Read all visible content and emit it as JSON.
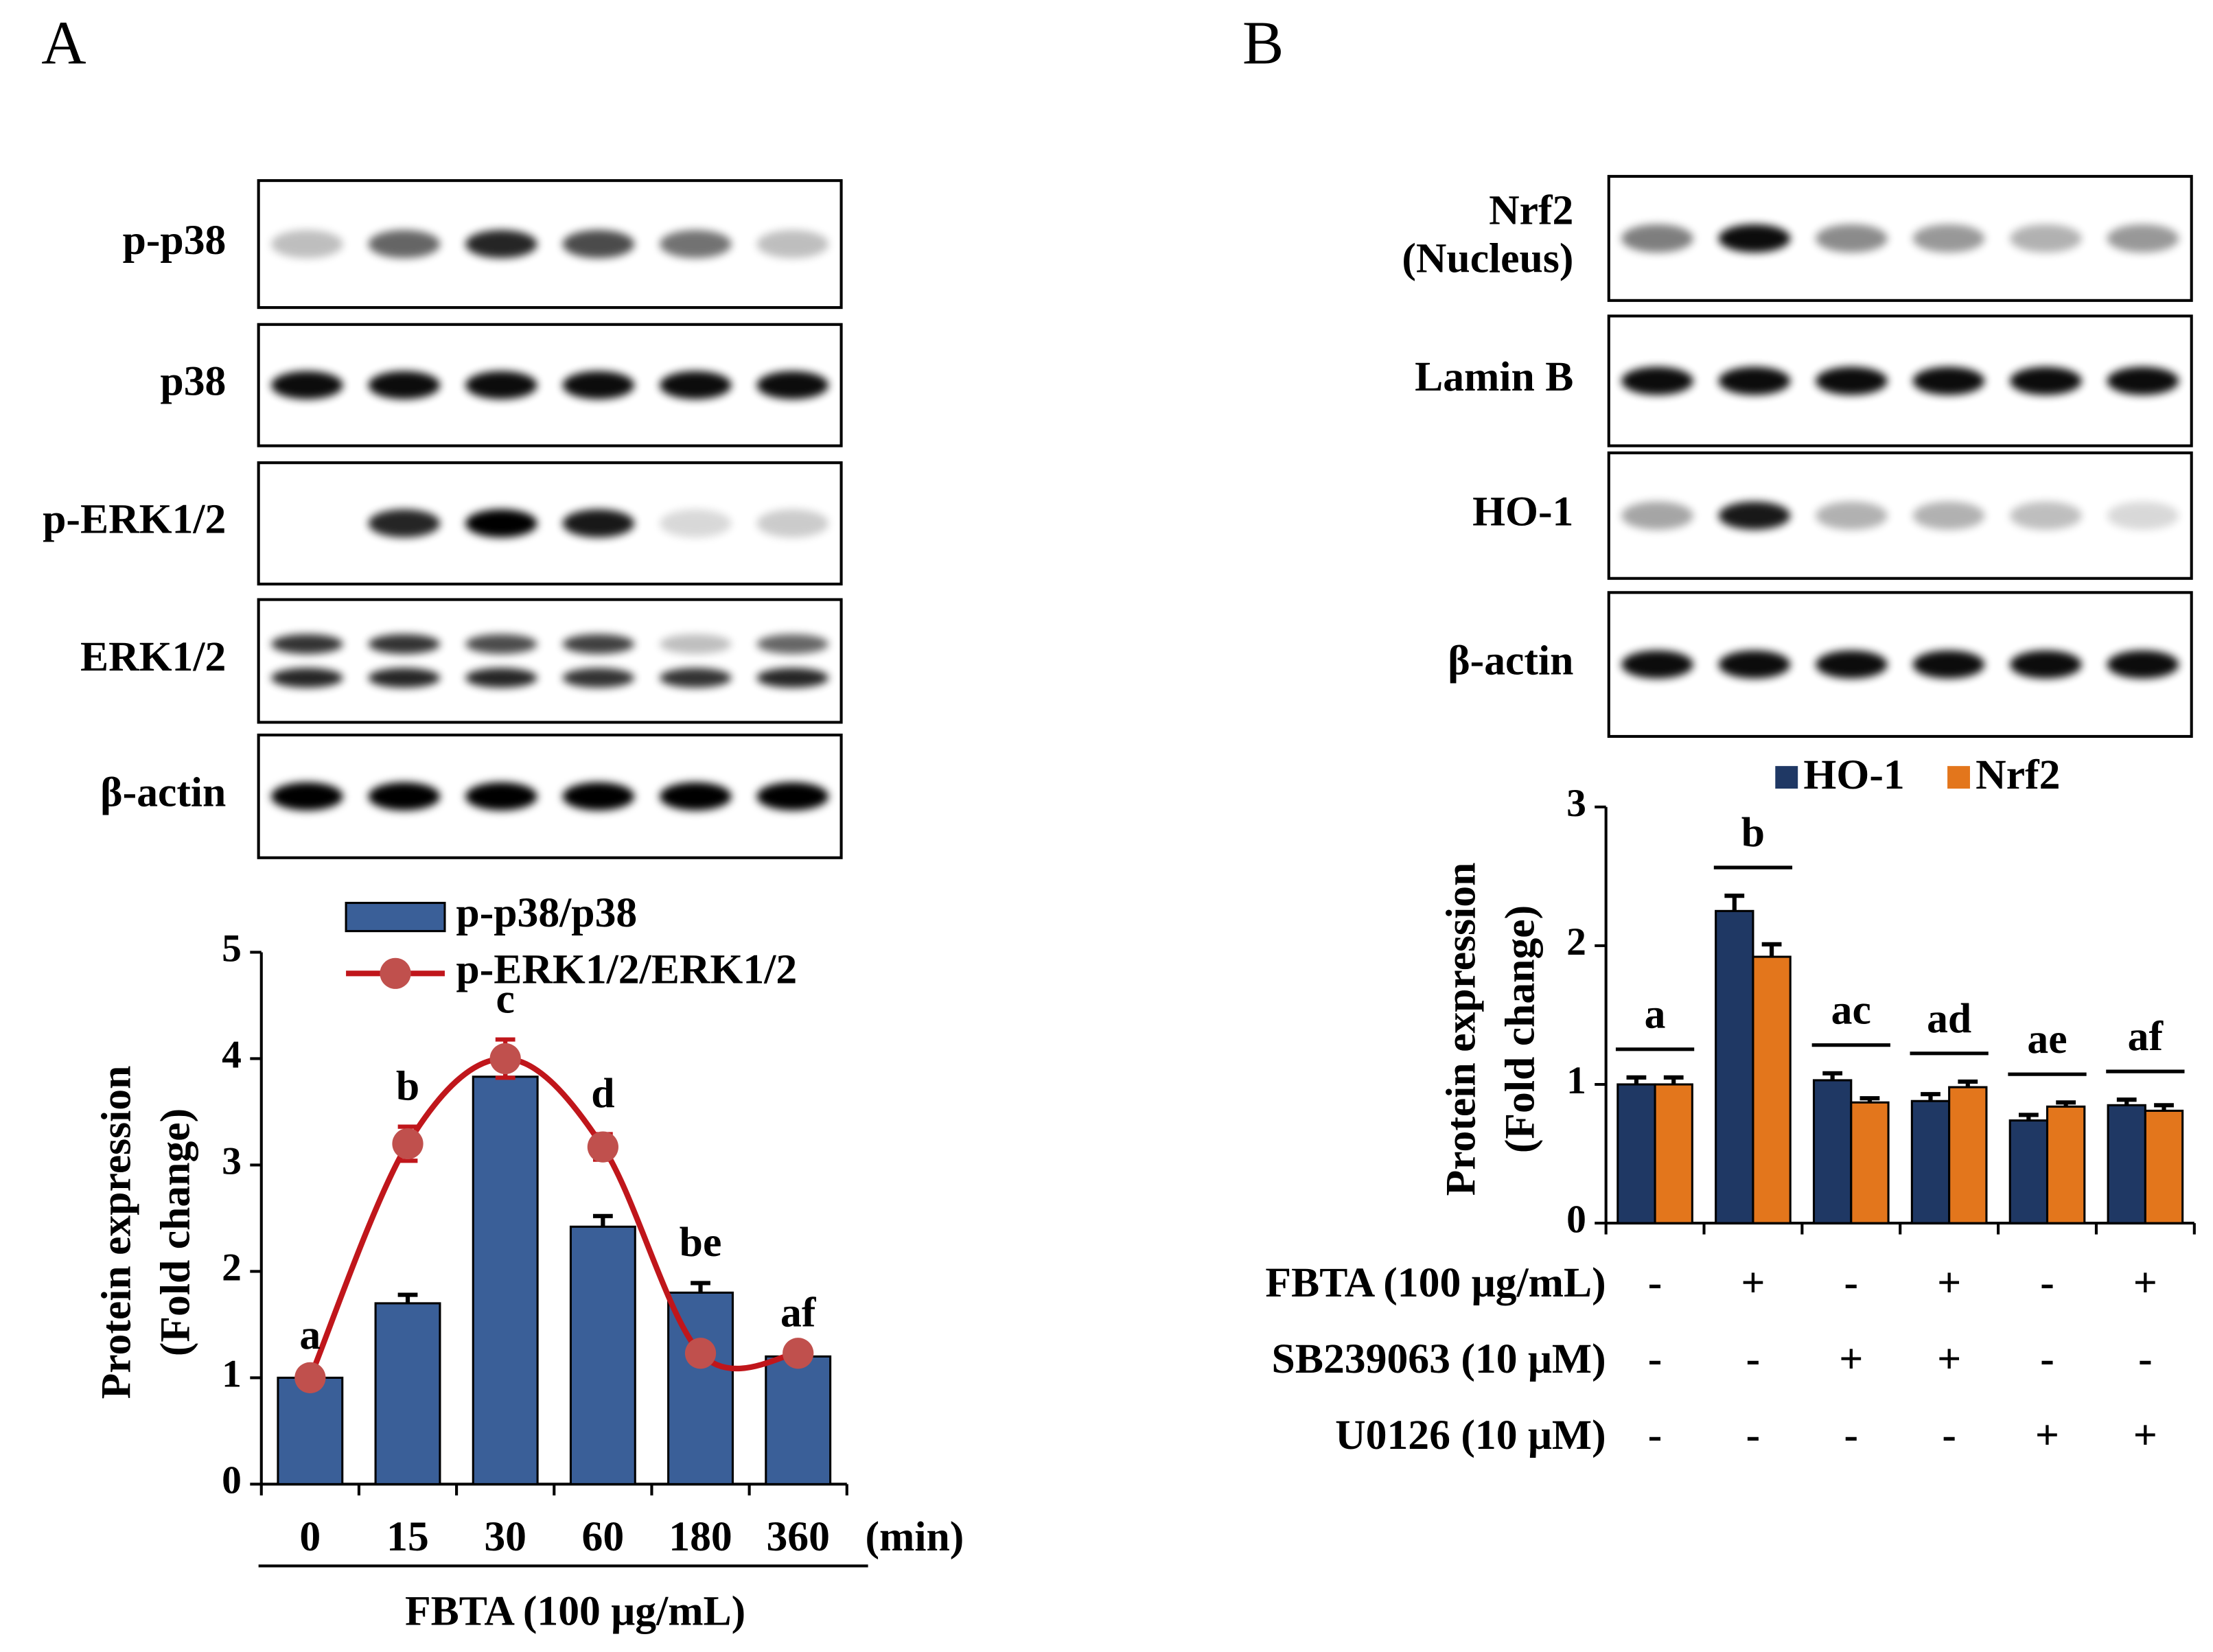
{
  "panels": [
    "A",
    "B"
  ],
  "blots_a": {
    "labels": [
      "p-p38",
      "p38",
      "p-ERK1/2",
      "ERK1/2",
      "β-actin"
    ]
  },
  "blots_b": {
    "labels": [
      [
        "Nrf2",
        "(Nucleus)"
      ],
      "Lamin B",
      "HO-1",
      "β-actin"
    ]
  },
  "chart_data": [
    {
      "type": "bar",
      "categories": [
        "0",
        "15",
        "30",
        "60",
        "180",
        "360"
      ],
      "x_unit": "(min)",
      "x_label": "FBTA (100 μg/mL)",
      "y_label": [
        "Protein expression",
        "(Fold change)"
      ],
      "ylim": [
        0,
        5
      ],
      "yticks": [
        0,
        1,
        2,
        3,
        4,
        5
      ],
      "legend": "top",
      "letters": [
        "a",
        "b",
        "c",
        "d",
        "be",
        "af"
      ],
      "series": [
        {
          "name": "p-p38/p38",
          "type": "bar",
          "color": "#3a5f98",
          "values": [
            1,
            1.7,
            3.83,
            2.42,
            1.8,
            1.2
          ],
          "errors": [
            0.02,
            0.08,
            0.1,
            0.1,
            0.09,
            0.03
          ]
        },
        {
          "name": "p-ERK1/2/ERK1/2",
          "type": "line",
          "color": "#c0161b",
          "marker_color": "#c0504d",
          "values": [
            1,
            3.2,
            4.0,
            3.17,
            1.23,
            1.23
          ],
          "errors": [
            0,
            0.16,
            0.18,
            0.12,
            0,
            0
          ]
        }
      ]
    },
    {
      "type": "bar",
      "categories": [
        null,
        null,
        null,
        null,
        null,
        null
      ],
      "y_label": [
        "Protein expression",
        "(Fold change)"
      ],
      "ylim": [
        0,
        3
      ],
      "yticks": [
        0,
        1,
        2,
        3
      ],
      "legend": "top",
      "letters": [
        "a",
        "b",
        "ac",
        "ad",
        "ae",
        "af"
      ],
      "series": [
        {
          "name": "HO-1",
          "type": "bar",
          "color": "#1f3864",
          "values": [
            1,
            2.25,
            1.03,
            0.88,
            0.74,
            0.85
          ],
          "errors": [
            0.05,
            0.11,
            0.05,
            0.05,
            0.04,
            0.04
          ]
        },
        {
          "name": "Nrf2",
          "type": "bar",
          "color": "#e3761c",
          "values": [
            1,
            1.92,
            0.87,
            0.98,
            0.84,
            0.81
          ],
          "errors": [
            0.05,
            0.09,
            0.03,
            0.04,
            0.03,
            0.04
          ]
        }
      ],
      "conditions": [
        {
          "label": "FBTA (100 μg/mL)",
          "values": [
            "-",
            "+",
            "-",
            "+",
            "-",
            "+"
          ]
        },
        {
          "label": "SB239063 (10 μM)",
          "values": [
            "-",
            "-",
            "+",
            "+",
            "-",
            "-"
          ]
        },
        {
          "label": "U0126 (10 μM)",
          "values": [
            "-",
            "-",
            "-",
            "-",
            "+",
            "+"
          ]
        }
      ]
    }
  ]
}
